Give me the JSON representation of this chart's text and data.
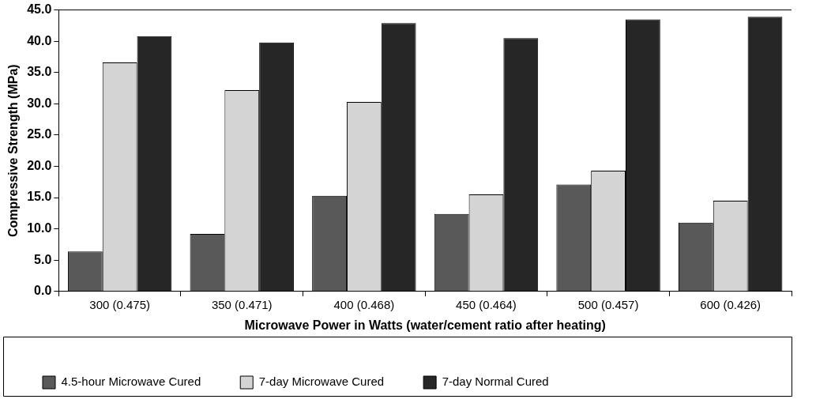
{
  "chart_data": {
    "type": "bar",
    "xlabel": "Microwave Power in Watts (water/cement ratio after heating)",
    "ylabel": "Compressive Strength (MPa)",
    "categories": [
      "300 (0.475)",
      "350 (0.471)",
      "400 (0.468)",
      "450 (0.464)",
      "500 (0.457)",
      "600 (0.426)"
    ],
    "series": [
      {
        "name": "4.5-hour Microwave Cured",
        "color": "#595959",
        "values": [
          6.4,
          9.2,
          15.3,
          12.4,
          17.1,
          11.0
        ]
      },
      {
        "name": "7-day Microwave Cured",
        "color": "#d4d4d4",
        "values": [
          36.6,
          32.2,
          30.3,
          15.5,
          19.3,
          14.5
        ]
      },
      {
        "name": "7-day Normal Cured",
        "color": "#262626",
        "values": [
          40.8,
          39.8,
          42.9,
          40.5,
          43.5,
          43.9
        ]
      }
    ],
    "ylim": [
      0,
      45
    ],
    "yticks": [
      {
        "value": 0,
        "label": "0.0"
      },
      {
        "value": 5,
        "label": "5.0"
      },
      {
        "value": 10,
        "label": "10.0"
      },
      {
        "value": 15,
        "label": "15.0"
      },
      {
        "value": 20,
        "label": "20.0"
      },
      {
        "value": 25,
        "label": "25.0"
      },
      {
        "value": 30,
        "label": "30.0"
      },
      {
        "value": 35,
        "label": "35.0"
      },
      {
        "value": 40,
        "label": "40.0"
      },
      {
        "value": 45,
        "label": "45.0"
      }
    ],
    "grid": false,
    "legend": "bottom"
  }
}
